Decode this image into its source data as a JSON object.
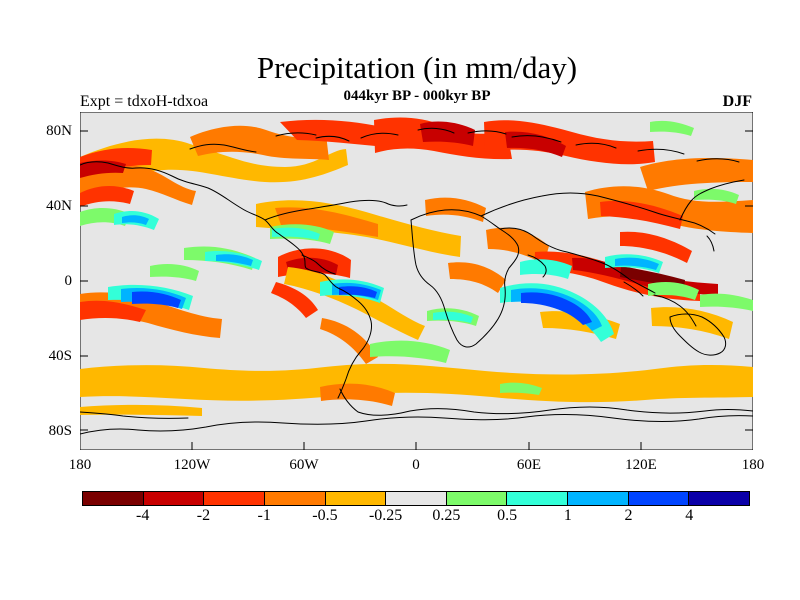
{
  "title": "Precipitation (in mm/day)",
  "subtitle_left": "Expt = tdxoH-tdxoa",
  "subtitle_center": "044kyr BP - 000kyr BP",
  "subtitle_right": "DJF",
  "map": {
    "lat_labels": [
      "80N",
      "40N",
      "0",
      "40S",
      "80S"
    ],
    "lon_labels": [
      "180",
      "120W",
      "60W",
      "0",
      "60E",
      "120E",
      "180"
    ],
    "background_color": "#e6e6e6",
    "coastline_color": "#000000"
  },
  "colorbar": {
    "colors": [
      "#7a0000",
      "#c80000",
      "#ff3300",
      "#ff7a00",
      "#ffb800",
      "#e6e6e6",
      "#7dfa6a",
      "#33ffd8",
      "#00b4ff",
      "#0044ff",
      "#0b00a8"
    ],
    "labels": [
      "-4",
      "-2",
      "-1",
      "-0.5",
      "-0.25",
      "0.25",
      "0.5",
      "1",
      "2",
      "4"
    ]
  }
}
